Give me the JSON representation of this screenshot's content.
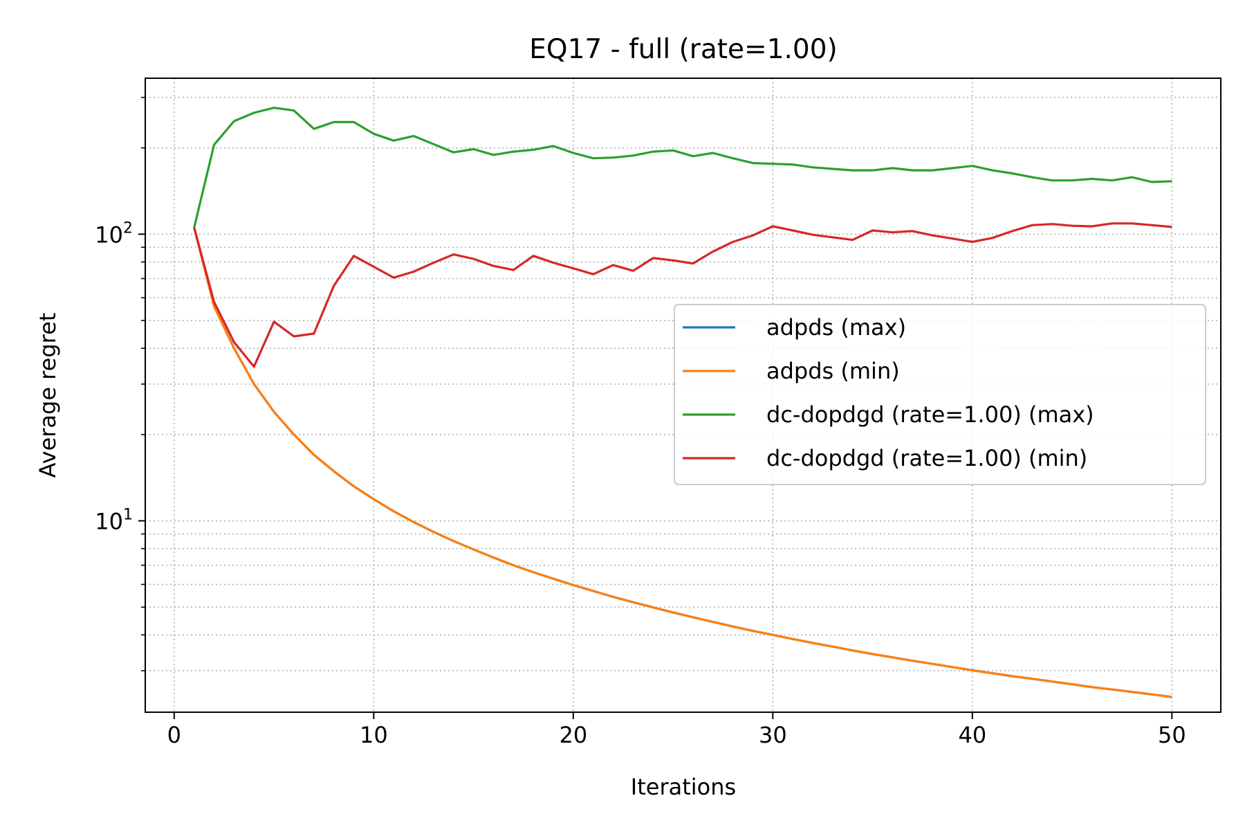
{
  "chart_data": {
    "type": "line",
    "title": "EQ17 - full (rate=1.00)",
    "xlabel": "Iterations",
    "ylabel": "Average regret",
    "xlim": [
      -1.45,
      52.45
    ],
    "ylim": [
      2.15,
      350
    ],
    "yscale": "log",
    "xticks": [
      0,
      10,
      20,
      30,
      40,
      50
    ],
    "xtick_labels": [
      "0",
      "10",
      "20",
      "30",
      "40",
      "50"
    ],
    "yticks_major": [
      10,
      100
    ],
    "ytick_labels": [
      {
        "base": "10",
        "exp": "1"
      },
      {
        "base": "10",
        "exp": "2"
      }
    ],
    "yticks_minor": [
      3,
      4,
      5,
      6,
      7,
      8,
      9,
      20,
      30,
      40,
      50,
      60,
      70,
      80,
      90,
      200,
      300
    ],
    "grid": true,
    "grid_style": "dotted",
    "legend_position": "center-right",
    "x": [
      1,
      2,
      3,
      4,
      5,
      6,
      7,
      8,
      9,
      10,
      11,
      12,
      13,
      14,
      15,
      16,
      17,
      18,
      19,
      20,
      21,
      22,
      23,
      24,
      25,
      26,
      27,
      28,
      29,
      30,
      31,
      32,
      33,
      34,
      35,
      36,
      37,
      38,
      39,
      40,
      41,
      42,
      43,
      44,
      45,
      46,
      47,
      48,
      49,
      50
    ],
    "series": [
      {
        "name": "adpds (max)",
        "color": "#1f77b4",
        "values": [
          105.5,
          56.0,
          40.0,
          30.0,
          24.0,
          20.0,
          17.0,
          14.9,
          13.2,
          11.9,
          10.8,
          9.9,
          9.15,
          8.5,
          7.95,
          7.45,
          7.0,
          6.62,
          6.28,
          5.97,
          5.69,
          5.43,
          5.2,
          4.99,
          4.79,
          4.61,
          4.44,
          4.28,
          4.13,
          4.0,
          3.87,
          3.75,
          3.64,
          3.53,
          3.43,
          3.34,
          3.25,
          3.17,
          3.09,
          3.01,
          2.94,
          2.87,
          2.81,
          2.75,
          2.69,
          2.63,
          2.58,
          2.53,
          2.48,
          2.43
        ]
      },
      {
        "name": "adpds (min)",
        "color": "#ff7f0e",
        "values": [
          105.5,
          56.0,
          40.0,
          30.0,
          24.0,
          20.0,
          17.0,
          14.9,
          13.2,
          11.9,
          10.8,
          9.9,
          9.15,
          8.5,
          7.95,
          7.45,
          7.0,
          6.62,
          6.28,
          5.97,
          5.69,
          5.43,
          5.2,
          4.99,
          4.79,
          4.61,
          4.44,
          4.28,
          4.13,
          4.0,
          3.87,
          3.75,
          3.64,
          3.53,
          3.43,
          3.34,
          3.25,
          3.17,
          3.09,
          3.01,
          2.94,
          2.87,
          2.81,
          2.75,
          2.69,
          2.63,
          2.58,
          2.53,
          2.48,
          2.43
        ]
      },
      {
        "name": "dc-dopdgd (rate=1.00) (max)",
        "color": "#2ca02c",
        "values": [
          105.5,
          205,
          248,
          265,
          276,
          270,
          233,
          246,
          246,
          224,
          212,
          220,
          206,
          193,
          198,
          189,
          194,
          197,
          203,
          192,
          184,
          185,
          188,
          194,
          196,
          187,
          192,
          184,
          177,
          176,
          175,
          171,
          169,
          167,
          167,
          170,
          167,
          167,
          170,
          173,
          167,
          163,
          158,
          154,
          154,
          156,
          154,
          158,
          152,
          153
        ]
      },
      {
        "name": "dc-dopdgd (rate=1.00) (min)",
        "color": "#d62728",
        "values": [
          105.5,
          58.0,
          42.0,
          34.5,
          49.5,
          44.0,
          45.0,
          66.0,
          84.0,
          77.0,
          70.5,
          74.0,
          79.5,
          85.0,
          82.0,
          77.5,
          75.0,
          84.0,
          79.5,
          76.0,
          72.5,
          78.0,
          74.5,
          82.5,
          81.0,
          79.0,
          87.0,
          94.0,
          99.0,
          106.5,
          103.0,
          99.5,
          97.5,
          95.5,
          103.0,
          101.5,
          102.5,
          99.0,
          96.5,
          94.0,
          97.0,
          102.5,
          107.5,
          108.5,
          107.0,
          106.5,
          109.0,
          109.0,
          107.5,
          106.0
        ]
      }
    ]
  }
}
